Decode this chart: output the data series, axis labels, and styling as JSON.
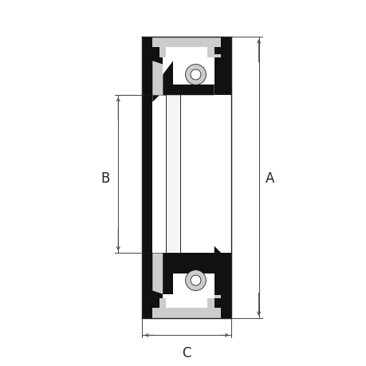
{
  "bg_color": "#ffffff",
  "line_color": "#222222",
  "dark_fill": "#111111",
  "light_fill": "#cccccc",
  "white_fill": "#ffffff",
  "dim_color": "#444444",
  "fig_size": [
    4.6,
    4.6
  ],
  "dpi": 100,
  "label_A": "A",
  "label_B": "B",
  "label_C": "C",
  "label_fontsize": 12
}
